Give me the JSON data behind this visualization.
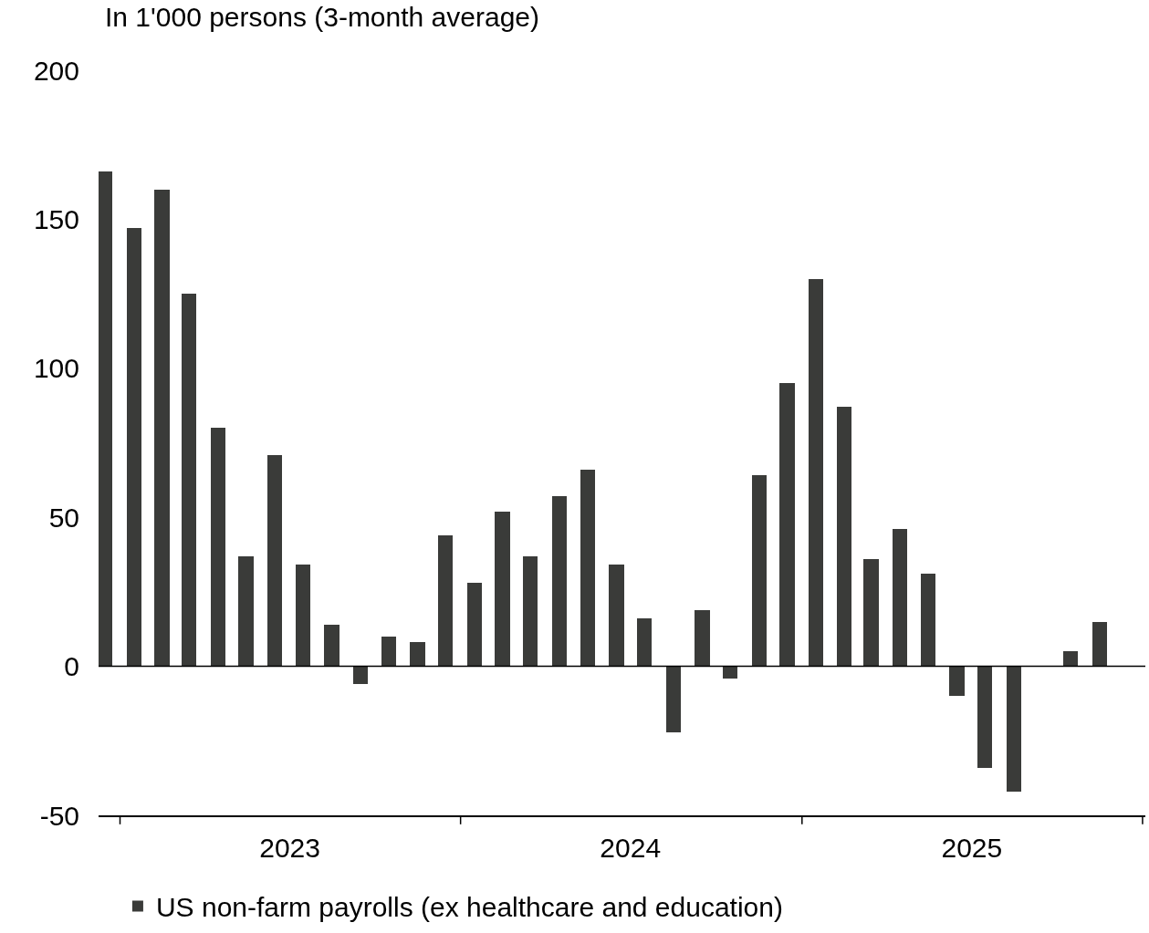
{
  "chart_data": {
    "type": "bar",
    "title": "In 1'000 persons (3-month average)",
    "x": [
      "2022-12-16",
      "2023-01-16",
      "2023-02-15",
      "2023-03-16",
      "2023-04-16",
      "2023-05-16",
      "2023-06-16",
      "2023-07-16",
      "2023-08-16",
      "2023-09-16",
      "2023-10-16",
      "2023-11-16",
      "2023-12-16",
      "2024-01-16",
      "2024-02-15",
      "2024-03-16",
      "2024-04-16",
      "2024-05-16",
      "2024-06-16",
      "2024-07-16",
      "2024-08-16",
      "2024-09-16",
      "2024-10-16",
      "2024-11-16",
      "2024-12-16",
      "2025-01-16",
      "2025-02-15",
      "2025-03-16",
      "2025-04-16",
      "2025-05-16",
      "2025-06-16",
      "2025-07-16",
      "2025-08-16",
      "2025-09-16",
      "2025-10-16",
      "2025-11-16"
    ],
    "series": [
      {
        "name": "US non-farm payrolls (ex healthcare and education)",
        "color": "#3a3b39",
        "values": [
          166,
          147,
          160,
          125,
          80,
          37,
          71,
          34,
          14,
          -6,
          10,
          8,
          44,
          28,
          52,
          37,
          57,
          66,
          34,
          16,
          -22,
          19,
          -4,
          64,
          95,
          130,
          87,
          36,
          46,
          31,
          -10,
          -34,
          -42,
          0,
          5,
          15
        ]
      }
    ],
    "xlim": [
      "2022-12-09",
      "2026-01-04"
    ],
    "xticks": [
      {
        "value": "2023-01-01",
        "label": null
      },
      {
        "value": "2023-07-02",
        "label": "2023"
      },
      {
        "value": "2024-01-01",
        "label": null
      },
      {
        "value": "2024-07-01",
        "label": "2024"
      },
      {
        "value": "2025-01-01",
        "label": null
      },
      {
        "value": "2025-07-02",
        "label": "2025"
      },
      {
        "value": "2026-01-01",
        "label": null
      }
    ],
    "ylim": [
      -50,
      200
    ],
    "yticks": [
      -50,
      0,
      50,
      100,
      150,
      200
    ],
    "ref_lines": [
      {
        "axis": "y",
        "value": 0,
        "color": "#000000"
      }
    ],
    "legend": "bottom"
  }
}
